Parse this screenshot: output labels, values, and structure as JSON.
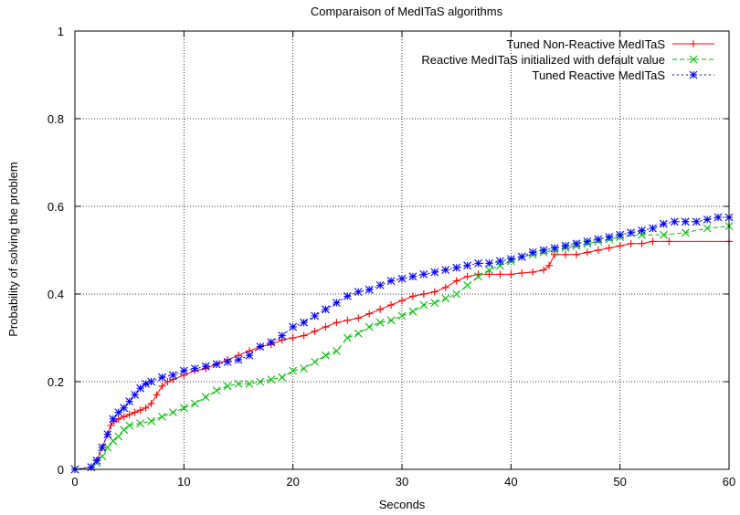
{
  "chart_data": {
    "type": "line",
    "title": "Comparaison of MedITaS algorithms",
    "xlabel": "Seconds",
    "ylabel": "Probability of solving the problem",
    "xlim": [
      0,
      60
    ],
    "ylim": [
      0,
      1
    ],
    "xticks": [
      0,
      10,
      20,
      30,
      40,
      50,
      60
    ],
    "yticks": [
      0,
      0.2,
      0.4,
      0.6,
      0.8,
      1
    ],
    "ytick_labels": [
      "0",
      "0.2",
      "0.4",
      "0.6",
      "0.8",
      "1"
    ],
    "grid": true,
    "legend_position": "top-right",
    "series": [
      {
        "name": "Tuned Non-Reactive MedITaS",
        "color": "#ff0000",
        "marker": "plus",
        "line": "solid",
        "points": [
          [
            0,
            0
          ],
          [
            1.5,
            0.005
          ],
          [
            2.0,
            0.02
          ],
          [
            2.5,
            0.05
          ],
          [
            3.0,
            0.08
          ],
          [
            3.3,
            0.1
          ],
          [
            3.6,
            0.11
          ],
          [
            4.0,
            0.115
          ],
          [
            4.5,
            0.12
          ],
          [
            5.0,
            0.125
          ],
          [
            5.5,
            0.13
          ],
          [
            6.0,
            0.135
          ],
          [
            6.5,
            0.14
          ],
          [
            7.0,
            0.15
          ],
          [
            7.5,
            0.17
          ],
          [
            8.0,
            0.19
          ],
          [
            8.5,
            0.2
          ],
          [
            9.0,
            0.205
          ],
          [
            10.0,
            0.215
          ],
          [
            11.0,
            0.225
          ],
          [
            12.0,
            0.23
          ],
          [
            13.0,
            0.24
          ],
          [
            14.0,
            0.25
          ],
          [
            15.0,
            0.26
          ],
          [
            16.0,
            0.27
          ],
          [
            17.0,
            0.28
          ],
          [
            18.0,
            0.285
          ],
          [
            19.0,
            0.295
          ],
          [
            20.0,
            0.3
          ],
          [
            21.0,
            0.305
          ],
          [
            22.0,
            0.315
          ],
          [
            23.0,
            0.325
          ],
          [
            24.0,
            0.335
          ],
          [
            25.0,
            0.34
          ],
          [
            26.0,
            0.345
          ],
          [
            27.0,
            0.355
          ],
          [
            28.0,
            0.365
          ],
          [
            29.0,
            0.375
          ],
          [
            30.0,
            0.385
          ],
          [
            31.0,
            0.395
          ],
          [
            32.0,
            0.4
          ],
          [
            33.0,
            0.405
          ],
          [
            34.0,
            0.415
          ],
          [
            35.0,
            0.43
          ],
          [
            36.0,
            0.44
          ],
          [
            37.0,
            0.445
          ],
          [
            38.0,
            0.445
          ],
          [
            39.0,
            0.445
          ],
          [
            40.0,
            0.445
          ],
          [
            41.0,
            0.448
          ],
          [
            42.0,
            0.45
          ],
          [
            43.0,
            0.455
          ],
          [
            43.5,
            0.465
          ],
          [
            44.0,
            0.49
          ],
          [
            45.0,
            0.49
          ],
          [
            46.0,
            0.49
          ],
          [
            47.0,
            0.495
          ],
          [
            48.0,
            0.5
          ],
          [
            49.0,
            0.505
          ],
          [
            50.0,
            0.51
          ],
          [
            51.0,
            0.515
          ],
          [
            52.0,
            0.515
          ],
          [
            53.0,
            0.52
          ],
          [
            54.5,
            0.52
          ],
          [
            60.0,
            0.52
          ]
        ]
      },
      {
        "name": "Reactive MedITaS initialized with default value",
        "color": "#00c000",
        "marker": "cross",
        "line": "dashed",
        "points": [
          [
            0,
            0
          ],
          [
            1.5,
            0.005
          ],
          [
            2.0,
            0.015
          ],
          [
            2.5,
            0.03
          ],
          [
            3.0,
            0.05
          ],
          [
            3.5,
            0.065
          ],
          [
            4.0,
            0.075
          ],
          [
            4.5,
            0.09
          ],
          [
            5.0,
            0.1
          ],
          [
            6.0,
            0.105
          ],
          [
            7.0,
            0.11
          ],
          [
            8.0,
            0.12
          ],
          [
            9.0,
            0.13
          ],
          [
            10.0,
            0.14
          ],
          [
            11.0,
            0.15
          ],
          [
            12.0,
            0.165
          ],
          [
            13.0,
            0.18
          ],
          [
            14.0,
            0.19
          ],
          [
            15.0,
            0.195
          ],
          [
            16.0,
            0.195
          ],
          [
            17.0,
            0.2
          ],
          [
            18.0,
            0.205
          ],
          [
            19.0,
            0.21
          ],
          [
            20.0,
            0.225
          ],
          [
            21.0,
            0.23
          ],
          [
            22.0,
            0.245
          ],
          [
            23.0,
            0.26
          ],
          [
            24.0,
            0.27
          ],
          [
            25.0,
            0.3
          ],
          [
            26.0,
            0.31
          ],
          [
            27.0,
            0.325
          ],
          [
            28.0,
            0.335
          ],
          [
            29.0,
            0.34
          ],
          [
            30.0,
            0.35
          ],
          [
            31.0,
            0.36
          ],
          [
            32.0,
            0.375
          ],
          [
            33.0,
            0.38
          ],
          [
            34.0,
            0.39
          ],
          [
            35.0,
            0.4
          ],
          [
            36.0,
            0.42
          ],
          [
            37.0,
            0.44
          ],
          [
            38.0,
            0.455
          ],
          [
            39.0,
            0.465
          ],
          [
            40.0,
            0.475
          ],
          [
            41.0,
            0.485
          ],
          [
            42.0,
            0.49
          ],
          [
            43.0,
            0.495
          ],
          [
            44.0,
            0.5
          ],
          [
            45.0,
            0.505
          ],
          [
            46.0,
            0.51
          ],
          [
            47.0,
            0.515
          ],
          [
            48.0,
            0.52
          ],
          [
            49.0,
            0.525
          ],
          [
            50.0,
            0.53
          ],
          [
            52.0,
            0.535
          ],
          [
            54.0,
            0.535
          ],
          [
            56.0,
            0.54
          ],
          [
            58.0,
            0.55
          ],
          [
            60.0,
            0.555
          ]
        ]
      },
      {
        "name": "Tuned Reactive MedITaS",
        "color": "#0000ff",
        "marker": "star",
        "line": "dotted",
        "points": [
          [
            0,
            0
          ],
          [
            1.5,
            0.005
          ],
          [
            2.0,
            0.02
          ],
          [
            2.5,
            0.05
          ],
          [
            3.0,
            0.08
          ],
          [
            3.5,
            0.115
          ],
          [
            4.0,
            0.13
          ],
          [
            4.5,
            0.14
          ],
          [
            5.0,
            0.155
          ],
          [
            5.5,
            0.17
          ],
          [
            6.0,
            0.185
          ],
          [
            6.5,
            0.195
          ],
          [
            7.0,
            0.2
          ],
          [
            8.0,
            0.21
          ],
          [
            9.0,
            0.215
          ],
          [
            10.0,
            0.225
          ],
          [
            11.0,
            0.23
          ],
          [
            12.0,
            0.235
          ],
          [
            13.0,
            0.24
          ],
          [
            14.0,
            0.245
          ],
          [
            15.0,
            0.25
          ],
          [
            16.0,
            0.26
          ],
          [
            17.0,
            0.28
          ],
          [
            18.0,
            0.29
          ],
          [
            19.0,
            0.305
          ],
          [
            20.0,
            0.325
          ],
          [
            21.0,
            0.335
          ],
          [
            22.0,
            0.35
          ],
          [
            23.0,
            0.365
          ],
          [
            24.0,
            0.38
          ],
          [
            25.0,
            0.395
          ],
          [
            26.0,
            0.405
          ],
          [
            27.0,
            0.41
          ],
          [
            28.0,
            0.42
          ],
          [
            29.0,
            0.43
          ],
          [
            30.0,
            0.435
          ],
          [
            31.0,
            0.44
          ],
          [
            32.0,
            0.445
          ],
          [
            33.0,
            0.45
          ],
          [
            34.0,
            0.455
          ],
          [
            35.0,
            0.46
          ],
          [
            36.0,
            0.465
          ],
          [
            37.0,
            0.47
          ],
          [
            38.0,
            0.47
          ],
          [
            39.0,
            0.475
          ],
          [
            40.0,
            0.48
          ],
          [
            41.0,
            0.485
          ],
          [
            42.0,
            0.495
          ],
          [
            43.0,
            0.5
          ],
          [
            44.0,
            0.505
          ],
          [
            45.0,
            0.51
          ],
          [
            46.0,
            0.515
          ],
          [
            47.0,
            0.52
          ],
          [
            48.0,
            0.525
          ],
          [
            49.0,
            0.53
          ],
          [
            50.0,
            0.535
          ],
          [
            51.0,
            0.54
          ],
          [
            52.0,
            0.545
          ],
          [
            53.0,
            0.55
          ],
          [
            54.0,
            0.56
          ],
          [
            55.0,
            0.565
          ],
          [
            56.0,
            0.565
          ],
          [
            57.0,
            0.565
          ],
          [
            58.0,
            0.57
          ],
          [
            59.0,
            0.575
          ],
          [
            60.0,
            0.575
          ]
        ]
      }
    ]
  }
}
